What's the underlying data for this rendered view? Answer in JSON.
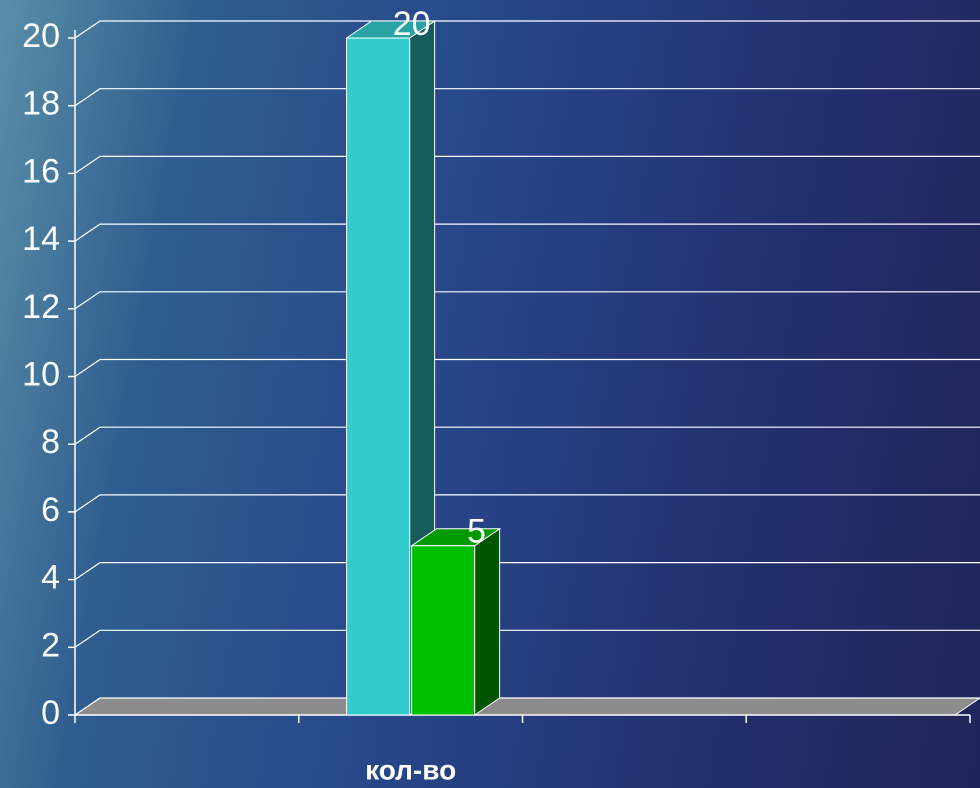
{
  "chart_data": {
    "type": "bar3d",
    "categories": [
      null,
      "кол-во",
      null,
      null
    ],
    "series": [
      {
        "color": "#33cccc",
        "values": [
          null,
          20,
          null,
          null
        ]
      },
      {
        "color": "#00c000",
        "values": [
          null,
          5,
          null,
          null
        ]
      }
    ],
    "ylim": [
      0,
      20
    ],
    "yticks": [
      0,
      2,
      4,
      6,
      8,
      10,
      12,
      14,
      16,
      18,
      20
    ],
    "grid": true,
    "data_labels": true
  }
}
